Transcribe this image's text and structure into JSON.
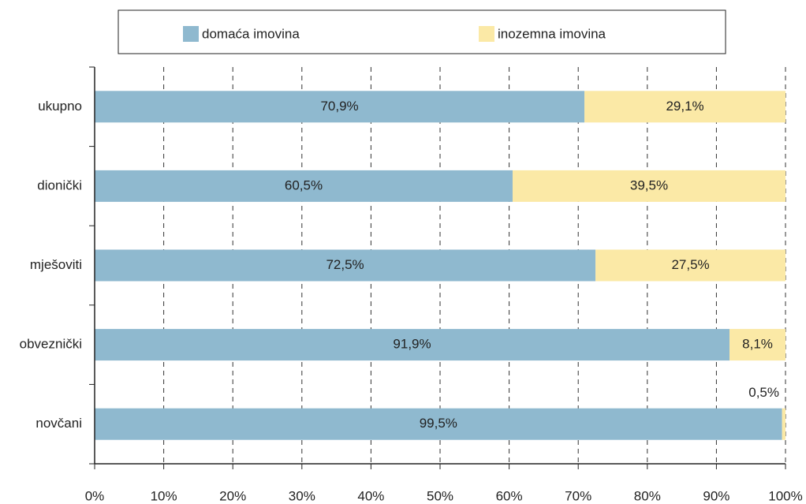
{
  "chart_data": {
    "type": "stacked-barh",
    "categories": [
      "ukupno",
      "dionički",
      "mješoviti",
      "obveznički",
      "novčani"
    ],
    "series": [
      {
        "name": "domaća imovina",
        "color": "#8fb9cf",
        "values": [
          70.9,
          60.5,
          72.5,
          91.9,
          99.5
        ],
        "value_labels": [
          "70,9%",
          "60,5%",
          "72,5%",
          "91,9%",
          "99,5%"
        ]
      },
      {
        "name": "inozemna imovina",
        "color": "#fbe9a6",
        "values": [
          29.1,
          39.5,
          27.5,
          8.1,
          0.5
        ],
        "value_labels": [
          "29,1%",
          "39,5%",
          "27,5%",
          "8,1%",
          "0,5%"
        ]
      }
    ],
    "xlim": [
      0,
      100
    ],
    "xticks": [
      {
        "value": 0,
        "label": "0%"
      },
      {
        "value": 10,
        "label": "10%"
      },
      {
        "value": 20,
        "label": "20%"
      },
      {
        "value": 30,
        "label": "30%"
      },
      {
        "value": 40,
        "label": "40%"
      },
      {
        "value": 50,
        "label": "50%"
      },
      {
        "value": 60,
        "label": "60%"
      },
      {
        "value": 70,
        "label": "70%"
      },
      {
        "value": 80,
        "label": "80%"
      },
      {
        "value": 90,
        "label": "90%"
      },
      {
        "value": 100,
        "label": "100%"
      }
    ],
    "grid": true,
    "legend": "top"
  }
}
